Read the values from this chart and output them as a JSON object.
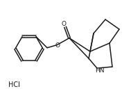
{
  "bg_color": "#ffffff",
  "line_color": "#1a1a1a",
  "line_width": 1.1,
  "font_size_atoms": 6.5,
  "font_size_hcl": 7,
  "hcl_text": "HCl",
  "hn_text": "HN",
  "o_carbonyl": "O",
  "o_ester": "O",
  "figsize": [
    1.89,
    1.38
  ],
  "dpi": 100
}
